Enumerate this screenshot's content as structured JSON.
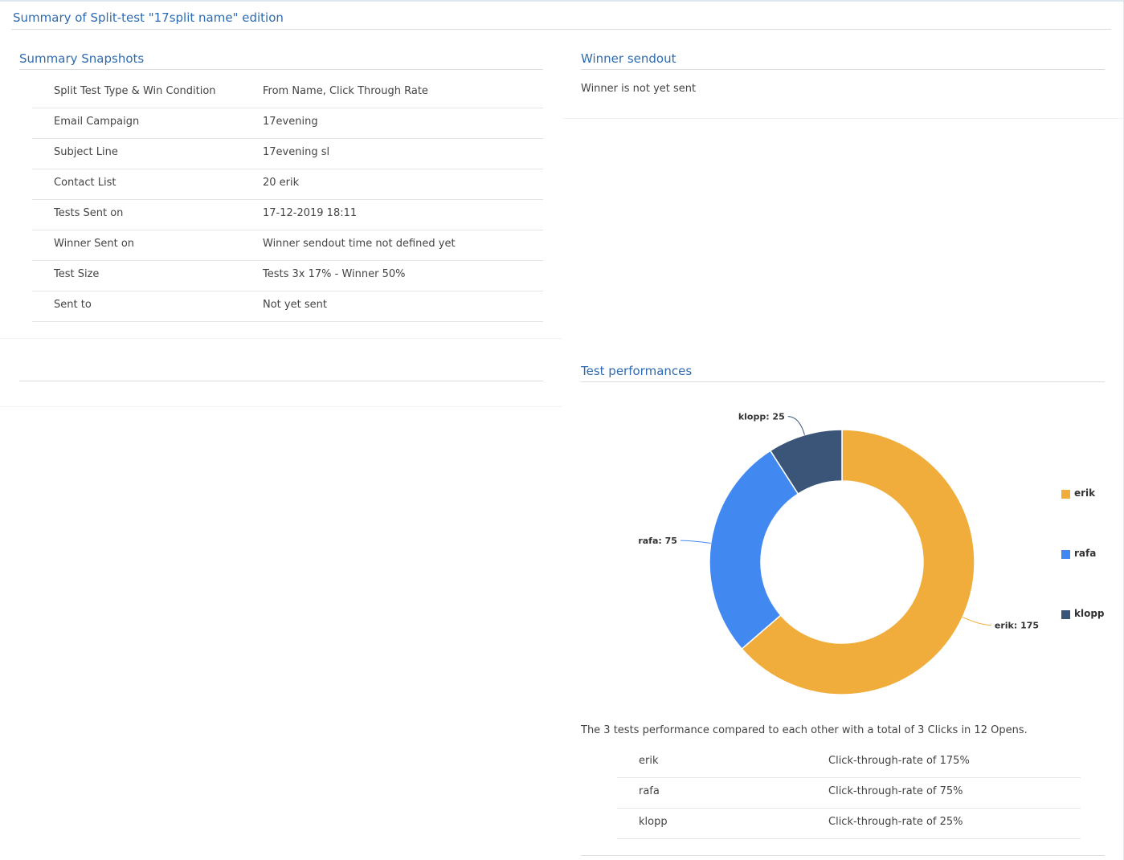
{
  "page": {
    "title": "Summary of Split-test \"17split name\" edition"
  },
  "snapshots": {
    "title": "Summary Snapshots",
    "rows": [
      {
        "label": "Split Test Type & Win Condition",
        "value": "From Name, Click Through Rate"
      },
      {
        "label": "Email Campaign",
        "value": "17evening"
      },
      {
        "label": "Subject Line",
        "value": "17evening sl"
      },
      {
        "label": "Contact List",
        "value": "20 erik"
      },
      {
        "label": "Tests Sent on",
        "value": "17-12-2019 18:11"
      },
      {
        "label": "Winner Sent on",
        "value": "Winner sendout time not defined yet"
      },
      {
        "label": "Test Size",
        "value": "Tests 3x 17% - Winner 50%"
      },
      {
        "label": "Sent to",
        "value": "Not yet sent"
      }
    ]
  },
  "winner": {
    "title": "Winner sendout",
    "text": "Winner is not yet sent"
  },
  "performance": {
    "title": "Test performances",
    "summary": "The 3 tests performance compared to each other with a total of 3 Clicks in 12 Opens.",
    "rows": [
      {
        "name": "erik",
        "rate": "Click-through-rate of 175%"
      },
      {
        "name": "rafa",
        "rate": "Click-through-rate of 75%"
      },
      {
        "name": "klopp",
        "rate": "Click-through-rate of 25%"
      }
    ]
  },
  "chart_data": {
    "type": "pie",
    "variant": "donut",
    "slices": [
      {
        "name": "erik",
        "value": 175,
        "label": "erik: 175",
        "color": "#f0ad3c"
      },
      {
        "name": "rafa",
        "value": 75,
        "label": "rafa: 75",
        "color": "#4189f0"
      },
      {
        "name": "klopp",
        "value": 25,
        "label": "klopp: 25",
        "color": "#3b5578"
      }
    ],
    "legend_position": "right"
  }
}
